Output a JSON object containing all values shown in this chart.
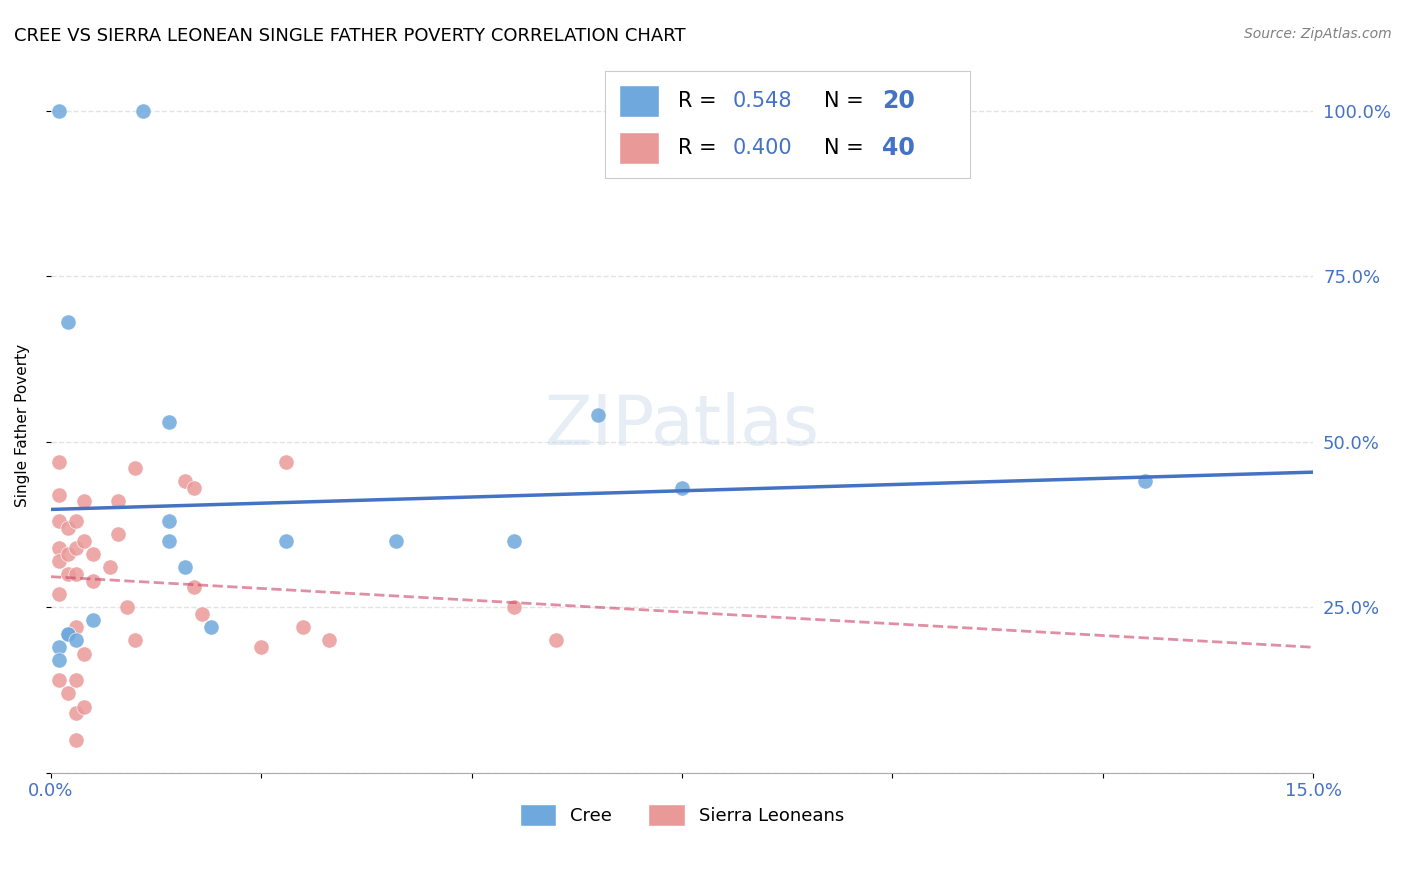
{
  "title": "CREE VS SIERRA LEONEAN SINGLE FATHER POVERTY CORRELATION CHART",
  "source": "Source: ZipAtlas.com",
  "ylabel": "Single Father Poverty",
  "xlim": [
    0.0,
    0.15
  ],
  "ylim": [
    0.0,
    1.05
  ],
  "cree_color": "#6fa8dc",
  "sierra_color": "#ea9999",
  "cree_line_color": "#4472c4",
  "sierra_line_color": "#cc4466",
  "cree_R": "0.548",
  "cree_N": "20",
  "sierra_R": "0.400",
  "sierra_N": "40",
  "cree_x": [
    0.011,
    0.002,
    0.014,
    0.014,
    0.016,
    0.028,
    0.014,
    0.019,
    0.005,
    0.002,
    0.001,
    0.001,
    0.002,
    0.003,
    0.041,
    0.065,
    0.055,
    0.075,
    0.13,
    0.001
  ],
  "cree_y": [
    1.0,
    0.68,
    0.53,
    0.35,
    0.31,
    0.35,
    0.38,
    0.22,
    0.23,
    0.21,
    0.19,
    0.17,
    0.21,
    0.2,
    0.35,
    0.54,
    0.35,
    0.43,
    0.44,
    1.0
  ],
  "sierra_x": [
    0.001,
    0.001,
    0.001,
    0.001,
    0.001,
    0.001,
    0.002,
    0.002,
    0.002,
    0.003,
    0.003,
    0.003,
    0.003,
    0.004,
    0.004,
    0.005,
    0.005,
    0.007,
    0.008,
    0.008,
    0.009,
    0.01,
    0.016,
    0.017,
    0.017,
    0.018,
    0.025,
    0.028,
    0.03,
    0.033,
    0.055,
    0.06,
    0.001,
    0.002,
    0.003,
    0.003,
    0.003,
    0.004,
    0.004,
    0.01
  ],
  "sierra_y": [
    0.47,
    0.42,
    0.38,
    0.34,
    0.32,
    0.27,
    0.37,
    0.33,
    0.3,
    0.38,
    0.34,
    0.3,
    0.22,
    0.41,
    0.35,
    0.33,
    0.29,
    0.31,
    0.41,
    0.36,
    0.25,
    0.2,
    0.44,
    0.43,
    0.28,
    0.24,
    0.19,
    0.47,
    0.22,
    0.2,
    0.25,
    0.2,
    0.14,
    0.12,
    0.14,
    0.09,
    0.05,
    0.18,
    0.1,
    0.46
  ],
  "grid_color": "#dddddd",
  "background_color": "#ffffff",
  "marker_size": 120,
  "title_fontsize": 13,
  "axis_label_fontsize": 11,
  "tick_fontsize": 13,
  "tick_color": "#4472c4"
}
